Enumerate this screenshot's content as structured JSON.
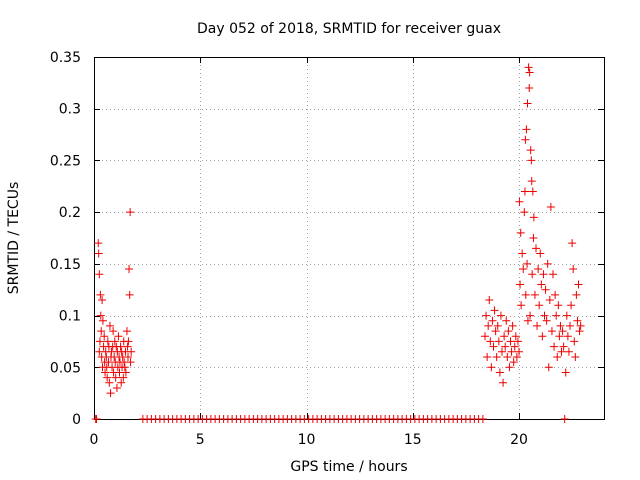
{
  "chart_data": {
    "type": "scatter",
    "title": "Day 052 of 2018, SRMTID for receiver guax",
    "xlabel": "GPS time / hours",
    "ylabel": "SRMTID / TECUs",
    "xlim": [
      0,
      24
    ],
    "ylim": [
      0,
      0.35
    ],
    "x_ticks": [
      0,
      5,
      10,
      15,
      20
    ],
    "x_tick_labels": [
      "0",
      "5",
      "10",
      "15",
      "20"
    ],
    "y_ticks": [
      0,
      0.05,
      0.1,
      0.15,
      0.2,
      0.25,
      0.3,
      0.35
    ],
    "y_tick_labels": [
      "0",
      "0.05",
      "0.1",
      "0.15",
      "0.2",
      "0.25",
      "0.3",
      "0.35"
    ],
    "grid": true,
    "marker": "+",
    "marker_color": "#ee0000",
    "series": [
      {
        "name": "SRMTID",
        "points": [
          [
            0.08,
            0.0
          ],
          [
            0.12,
            0.0
          ],
          [
            0.2,
            0.17
          ],
          [
            0.22,
            0.16
          ],
          [
            0.25,
            0.14
          ],
          [
            0.25,
            0.065
          ],
          [
            0.28,
            0.075
          ],
          [
            0.3,
            0.12
          ],
          [
            0.32,
            0.1
          ],
          [
            0.34,
            0.085
          ],
          [
            0.36,
            0.06
          ],
          [
            0.38,
            0.115
          ],
          [
            0.4,
            0.05
          ],
          [
            0.42,
            0.095
          ],
          [
            0.45,
            0.07
          ],
          [
            0.48,
            0.08
          ],
          [
            0.5,
            0.055
          ],
          [
            0.52,
            0.045
          ],
          [
            0.55,
            0.065
          ],
          [
            0.58,
            0.06
          ],
          [
            0.6,
            0.05
          ],
          [
            0.62,
            0.04
          ],
          [
            0.65,
            0.075
          ],
          [
            0.68,
            0.055
          ],
          [
            0.7,
            0.07
          ],
          [
            0.72,
            0.035
          ],
          [
            0.75,
            0.09
          ],
          [
            0.78,
            0.025
          ],
          [
            0.8,
            0.06
          ],
          [
            0.82,
            0.065
          ],
          [
            0.85,
            0.05
          ],
          [
            0.88,
            0.07
          ],
          [
            0.9,
            0.085
          ],
          [
            0.92,
            0.045
          ],
          [
            0.95,
            0.06
          ],
          [
            0.98,
            0.075
          ],
          [
            1.0,
            0.055
          ],
          [
            1.02,
            0.04
          ],
          [
            1.05,
            0.07
          ],
          [
            1.08,
            0.03
          ],
          [
            1.1,
            0.065
          ],
          [
            1.12,
            0.05
          ],
          [
            1.15,
            0.08
          ],
          [
            1.18,
            0.06
          ],
          [
            1.2,
            0.045
          ],
          [
            1.22,
            0.055
          ],
          [
            1.25,
            0.07
          ],
          [
            1.28,
            0.035
          ],
          [
            1.3,
            0.065
          ],
          [
            1.32,
            0.05
          ],
          [
            1.35,
            0.06
          ],
          [
            1.38,
            0.04
          ],
          [
            1.4,
            0.075
          ],
          [
            1.42,
            0.055
          ],
          [
            1.45,
            0.05
          ],
          [
            1.48,
            0.065
          ],
          [
            1.5,
            0.045
          ],
          [
            1.55,
            0.085
          ],
          [
            1.58,
            0.07
          ],
          [
            1.6,
            0.06
          ],
          [
            1.62,
            0.075
          ],
          [
            1.65,
            0.145
          ],
          [
            1.68,
            0.12
          ],
          [
            1.7,
            0.2
          ],
          [
            1.72,
            0.055
          ],
          [
            1.75,
            0.065
          ],
          [
            2.3,
            0.0
          ],
          [
            2.5,
            0.0
          ],
          [
            2.7,
            0.0
          ],
          [
            2.9,
            0.0
          ],
          [
            3.1,
            0.0
          ],
          [
            3.3,
            0.0
          ],
          [
            3.5,
            0.0
          ],
          [
            3.7,
            0.0
          ],
          [
            3.9,
            0.0
          ],
          [
            4.1,
            0.0
          ],
          [
            4.3,
            0.0
          ],
          [
            4.5,
            0.0
          ],
          [
            4.7,
            0.0
          ],
          [
            4.9,
            0.0
          ],
          [
            5.1,
            0.0
          ],
          [
            5.3,
            0.0
          ],
          [
            5.5,
            0.0
          ],
          [
            5.7,
            0.0
          ],
          [
            5.9,
            0.0
          ],
          [
            6.1,
            0.0
          ],
          [
            6.3,
            0.0
          ],
          [
            6.5,
            0.0
          ],
          [
            6.7,
            0.0
          ],
          [
            6.9,
            0.0
          ],
          [
            7.1,
            0.0
          ],
          [
            7.3,
            0.0
          ],
          [
            7.5,
            0.0
          ],
          [
            7.7,
            0.0
          ],
          [
            7.9,
            0.0
          ],
          [
            8.1,
            0.0
          ],
          [
            8.3,
            0.0
          ],
          [
            8.5,
            0.0
          ],
          [
            8.7,
            0.0
          ],
          [
            8.9,
            0.0
          ],
          [
            9.1,
            0.0
          ],
          [
            9.3,
            0.0
          ],
          [
            9.5,
            0.0
          ],
          [
            9.7,
            0.0
          ],
          [
            9.9,
            0.0
          ],
          [
            10.1,
            0.0
          ],
          [
            10.3,
            0.0
          ],
          [
            10.5,
            0.0
          ],
          [
            10.7,
            0.0
          ],
          [
            10.9,
            0.0
          ],
          [
            11.1,
            0.0
          ],
          [
            11.3,
            0.0
          ],
          [
            11.5,
            0.0
          ],
          [
            11.7,
            0.0
          ],
          [
            11.9,
            0.0
          ],
          [
            12.1,
            0.0
          ],
          [
            12.3,
            0.0
          ],
          [
            12.5,
            0.0
          ],
          [
            12.7,
            0.0
          ],
          [
            12.9,
            0.0
          ],
          [
            13.1,
            0.0
          ],
          [
            13.3,
            0.0
          ],
          [
            13.5,
            0.0
          ],
          [
            13.7,
            0.0
          ],
          [
            13.9,
            0.0
          ],
          [
            14.1,
            0.0
          ],
          [
            14.3,
            0.0
          ],
          [
            14.5,
            0.0
          ],
          [
            14.7,
            0.0
          ],
          [
            14.9,
            0.0
          ],
          [
            15.1,
            0.0
          ],
          [
            15.3,
            0.0
          ],
          [
            15.5,
            0.0
          ],
          [
            15.7,
            0.0
          ],
          [
            15.9,
            0.0
          ],
          [
            16.1,
            0.0
          ],
          [
            16.3,
            0.0
          ],
          [
            16.5,
            0.0
          ],
          [
            16.7,
            0.0
          ],
          [
            16.9,
            0.0
          ],
          [
            17.1,
            0.0
          ],
          [
            17.3,
            0.0
          ],
          [
            17.5,
            0.0
          ],
          [
            17.7,
            0.0
          ],
          [
            17.9,
            0.0
          ],
          [
            18.1,
            0.0
          ],
          [
            18.3,
            0.0
          ],
          [
            18.4,
            0.08
          ],
          [
            18.45,
            0.1
          ],
          [
            18.5,
            0.06
          ],
          [
            18.55,
            0.09
          ],
          [
            18.6,
            0.115
          ],
          [
            18.65,
            0.075
          ],
          [
            18.7,
            0.05
          ],
          [
            18.75,
            0.095
          ],
          [
            18.8,
            0.07
          ],
          [
            18.85,
            0.105
          ],
          [
            18.9,
            0.085
          ],
          [
            18.95,
            0.06
          ],
          [
            19.0,
            0.09
          ],
          [
            19.05,
            0.075
          ],
          [
            19.1,
            0.045
          ],
          [
            19.15,
            0.1
          ],
          [
            19.2,
            0.065
          ],
          [
            19.25,
            0.035
          ],
          [
            19.3,
            0.08
          ],
          [
            19.35,
            0.07
          ],
          [
            19.4,
            0.095
          ],
          [
            19.45,
            0.06
          ],
          [
            19.5,
            0.085
          ],
          [
            19.55,
            0.05
          ],
          [
            19.6,
            0.075
          ],
          [
            19.65,
            0.065
          ],
          [
            19.7,
            0.09
          ],
          [
            19.75,
            0.055
          ],
          [
            19.8,
            0.07
          ],
          [
            19.85,
            0.08
          ],
          [
            19.9,
            0.06
          ],
          [
            19.95,
            0.075
          ],
          [
            20.0,
            0.065
          ],
          [
            20.02,
            0.21
          ],
          [
            20.05,
            0.13
          ],
          [
            20.08,
            0.18
          ],
          [
            20.1,
            0.11
          ],
          [
            20.15,
            0.16
          ],
          [
            20.2,
            0.145
          ],
          [
            20.25,
            0.2
          ],
          [
            20.28,
            0.22
          ],
          [
            20.3,
            0.27
          ],
          [
            20.32,
            0.12
          ],
          [
            20.35,
            0.28
          ],
          [
            20.38,
            0.15
          ],
          [
            20.4,
            0.305
          ],
          [
            20.42,
            0.095
          ],
          [
            20.45,
            0.34
          ],
          [
            20.48,
            0.32
          ],
          [
            20.5,
            0.335
          ],
          [
            20.52,
            0.1
          ],
          [
            20.55,
            0.26
          ],
          [
            20.58,
            0.25
          ],
          [
            20.6,
            0.23
          ],
          [
            20.62,
            0.14
          ],
          [
            20.65,
            0.22
          ],
          [
            20.68,
            0.175
          ],
          [
            20.7,
            0.195
          ],
          [
            20.75,
            0.12
          ],
          [
            20.8,
            0.165
          ],
          [
            20.85,
            0.09
          ],
          [
            20.9,
            0.145
          ],
          [
            20.95,
            0.11
          ],
          [
            21.0,
            0.16
          ],
          [
            21.05,
            0.13
          ],
          [
            21.1,
            0.08
          ],
          [
            21.15,
            0.14
          ],
          [
            21.2,
            0.1
          ],
          [
            21.25,
            0.125
          ],
          [
            21.3,
            0.095
          ],
          [
            21.35,
            0.15
          ],
          [
            21.4,
            0.05
          ],
          [
            21.45,
            0.115
          ],
          [
            21.5,
            0.205
          ],
          [
            21.55,
            0.085
          ],
          [
            21.6,
            0.14
          ],
          [
            21.65,
            0.07
          ],
          [
            21.7,
            0.12
          ],
          [
            21.75,
            0.1
          ],
          [
            21.8,
            0.06
          ],
          [
            21.85,
            0.11
          ],
          [
            21.9,
            0.08
          ],
          [
            21.95,
            0.09
          ],
          [
            22.0,
            0.065
          ],
          [
            22.05,
            0.085
          ],
          [
            22.1,
            0.07
          ],
          [
            22.15,
            0.0
          ],
          [
            22.2,
            0.045
          ],
          [
            22.25,
            0.1
          ],
          [
            22.3,
            0.08
          ],
          [
            22.35,
            0.065
          ],
          [
            22.4,
            0.09
          ],
          [
            22.45,
            0.11
          ],
          [
            22.5,
            0.17
          ],
          [
            22.55,
            0.145
          ],
          [
            22.6,
            0.075
          ],
          [
            22.65,
            0.06
          ],
          [
            22.7,
            0.12
          ],
          [
            22.75,
            0.095
          ],
          [
            22.8,
            0.13
          ],
          [
            22.85,
            0.085
          ],
          [
            22.9,
            0.09
          ]
        ]
      }
    ]
  }
}
